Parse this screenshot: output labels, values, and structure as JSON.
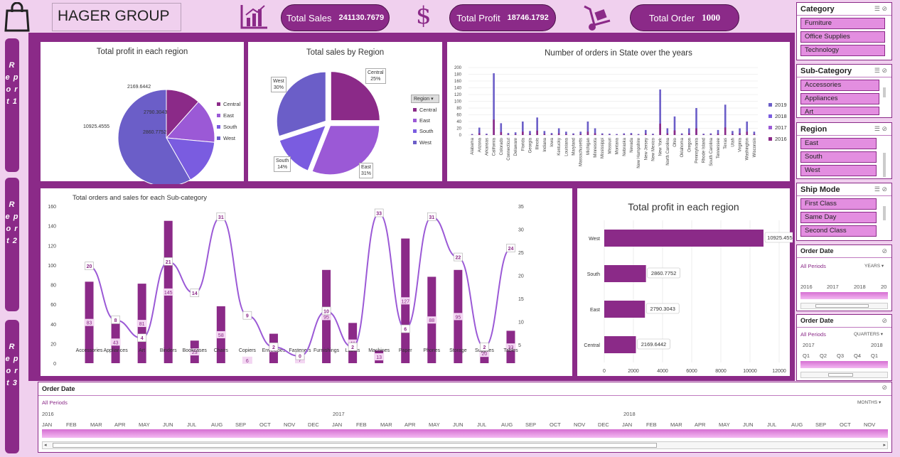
{
  "header": {
    "company": "HAGER GROUP",
    "kpis": [
      {
        "label": "Total Sales",
        "value": "241130.7679"
      },
      {
        "label": "Total Profit",
        "value": "18746.1792"
      },
      {
        "label": "Total Order",
        "value": "1000"
      }
    ]
  },
  "reports": [
    "R e p o r t 1",
    "R e p o r t 2",
    "R e p o r t 3"
  ],
  "colors": {
    "central": "#8b2a88",
    "east": "#9b59d6",
    "south": "#7a5ce0",
    "west": "#6b5ec8",
    "y2019": "#6b5ec8",
    "y2018": "#7a5ce0",
    "y2017": "#9b59d6",
    "y2016": "#8b2a88"
  },
  "profit_pie": {
    "title": "Total profit in each region",
    "legend": [
      "Central",
      "East",
      "South",
      "West"
    ],
    "labels": [
      "2169.6442",
      "2790.3043",
      "2860.7752",
      "10925.4555"
    ]
  },
  "sales_pie": {
    "title": "Total  sales by Region",
    "filter_button": "Region",
    "legend": [
      "Central",
      "East",
      "South",
      "West"
    ],
    "callouts": [
      {
        "name": "Central",
        "pct": "25%"
      },
      {
        "name": "East",
        "pct": "31%"
      },
      {
        "name": "South",
        "pct": "14%"
      },
      {
        "name": "West",
        "pct": "30%"
      }
    ]
  },
  "state_chart": {
    "title": "Number of orders in State over the years",
    "yticks": [
      "200",
      "180",
      "160",
      "140",
      "120",
      "100",
      "80",
      "60",
      "40",
      "20",
      "0"
    ],
    "legend": [
      "2019",
      "2018",
      "2017",
      "2016"
    ]
  },
  "subcat_chart": {
    "title": "Total orders and sales for each Sub-category",
    "yleft": [
      "160",
      "140",
      "120",
      "100",
      "80",
      "60",
      "40",
      "20",
      "0"
    ],
    "yright": [
      "35",
      "30",
      "25",
      "20",
      "15",
      "10",
      "5"
    ]
  },
  "bar_profit": {
    "title": "Total profit in each region",
    "xticks": [
      "0",
      "2000",
      "4000",
      "6000",
      "8000",
      "10000",
      "12000"
    ]
  },
  "chart_data": [
    {
      "type": "pie",
      "title": "Total profit in each region",
      "categories": [
        "Central",
        "East",
        "South",
        "West"
      ],
      "values": [
        2169.6442,
        2790.3043,
        2860.7752,
        10925.4555
      ]
    },
    {
      "type": "pie",
      "title": "Total  sales by Region",
      "categories": [
        "Central",
        "East",
        "South",
        "West"
      ],
      "values": [
        25,
        31,
        14,
        30
      ]
    },
    {
      "type": "bar",
      "title": "Number of orders in State over the years",
      "categories": [
        "Alabama",
        "Arizona",
        "Arkansas",
        "California",
        "Colorado",
        "Connecticut",
        "Delaware",
        "Florida",
        "Georgia",
        "Illinois",
        "Indiana",
        "Iowa",
        "Kentucky",
        "Louisiana",
        "Maryland",
        "Massachusetts",
        "Michigan",
        "Minnesota",
        "Mississippi",
        "Missouri",
        "Montana",
        "Nebraska",
        "Nevada",
        "New Hampshire",
        "New Jersey",
        "New Mexico",
        "New York",
        "North Carolina",
        "Ohio",
        "Oklahoma",
        "Oregon",
        "Pennsylvania",
        "Rhode Island",
        "South Carolina",
        "Tennessee",
        "Texas",
        "Utah",
        "Virginia",
        "Washington",
        "Wisconsin"
      ],
      "values": [
        3,
        22,
        4,
        183,
        35,
        6,
        8,
        40,
        12,
        52,
        12,
        6,
        20,
        10,
        5,
        10,
        40,
        20,
        5,
        4,
        3,
        5,
        6,
        3,
        15,
        4,
        135,
        20,
        55,
        5,
        20,
        80,
        4,
        5,
        15,
        90,
        12,
        20,
        40,
        10
      ],
      "ylim": [
        0,
        200
      ],
      "legend": [
        "2019",
        "2018",
        "2017",
        "2016"
      ]
    },
    {
      "type": "bar",
      "title": "Total orders and sales for each Sub-category",
      "categories": [
        "Accessories",
        "Appliances",
        "Art",
        "Binders",
        "Bookcases",
        "Chairs",
        "Copiers",
        "Envelopes",
        "Fasteners",
        "Furnishings",
        "Labels",
        "Machines",
        "Paper",
        "Phones",
        "Storage",
        "Supplies",
        "Tables"
      ],
      "series": [
        {
          "values": [
            83,
            43,
            81,
            145,
            23,
            58,
            6,
            30,
            7,
            95,
            41,
            13,
            127,
            88,
            95,
            20,
            33
          ]
        },
        {
          "values": [
            20,
            8,
            4,
            21,
            14,
            31,
            9,
            2,
            0,
            10,
            2,
            33,
            6,
            31,
            22,
            2,
            24
          ]
        }
      ],
      "ylim": [
        0,
        160
      ],
      "y2lim": [
        0,
        35
      ]
    },
    {
      "type": "bar",
      "title": "Total profit in each region",
      "categories": [
        "West",
        "South",
        "East",
        "Central"
      ],
      "values": [
        10925.4555,
        2860.7752,
        2790.3043,
        2169.6442
      ],
      "xlim": [
        0,
        12000
      ]
    }
  ],
  "slicers": [
    {
      "title": "Category",
      "items": [
        "Furniture",
        "Office Supplies",
        "Technology"
      ]
    },
    {
      "title": "Sub-Category",
      "items": [
        "Accessories",
        "Appliances",
        "Art"
      ]
    },
    {
      "title": "Region",
      "items": [
        "East",
        "South",
        "West"
      ]
    },
    {
      "title": "Ship Mode",
      "items": [
        "First Class",
        "Same Day",
        "Second Class"
      ]
    }
  ],
  "timeline_years": {
    "title": "Order Date",
    "period": "All Periods",
    "level": "YEARS",
    "labels": [
      "2016",
      "2017",
      "2018",
      "20"
    ]
  },
  "timeline_quarters": {
    "title": "Order Date",
    "period": "All Periods",
    "level": "QUARTERS",
    "years": [
      "2017",
      "2018"
    ],
    "labels": [
      "Q1",
      "Q2",
      "Q3",
      "Q4",
      "Q1"
    ]
  },
  "timeline_months": {
    "title": "Order Date",
    "period": "All Periods",
    "level": "MONTHS",
    "years": [
      "2016",
      "2017",
      "2018"
    ],
    "months": [
      "JAN",
      "FEB",
      "MAR",
      "APR",
      "MAY",
      "JUN",
      "JUL",
      "AUG",
      "SEP",
      "OCT",
      "NOV",
      "DEC",
      "JAN",
      "FEB",
      "MAR",
      "APR",
      "MAY",
      "JUN",
      "JUL",
      "AUG",
      "SEP",
      "OCT",
      "NOV",
      "DEC",
      "JAN",
      "FEB",
      "MAR",
      "APR",
      "MAY",
      "JUN",
      "JUL",
      "AUG",
      "SEP",
      "OCT",
      "NOV"
    ]
  }
}
